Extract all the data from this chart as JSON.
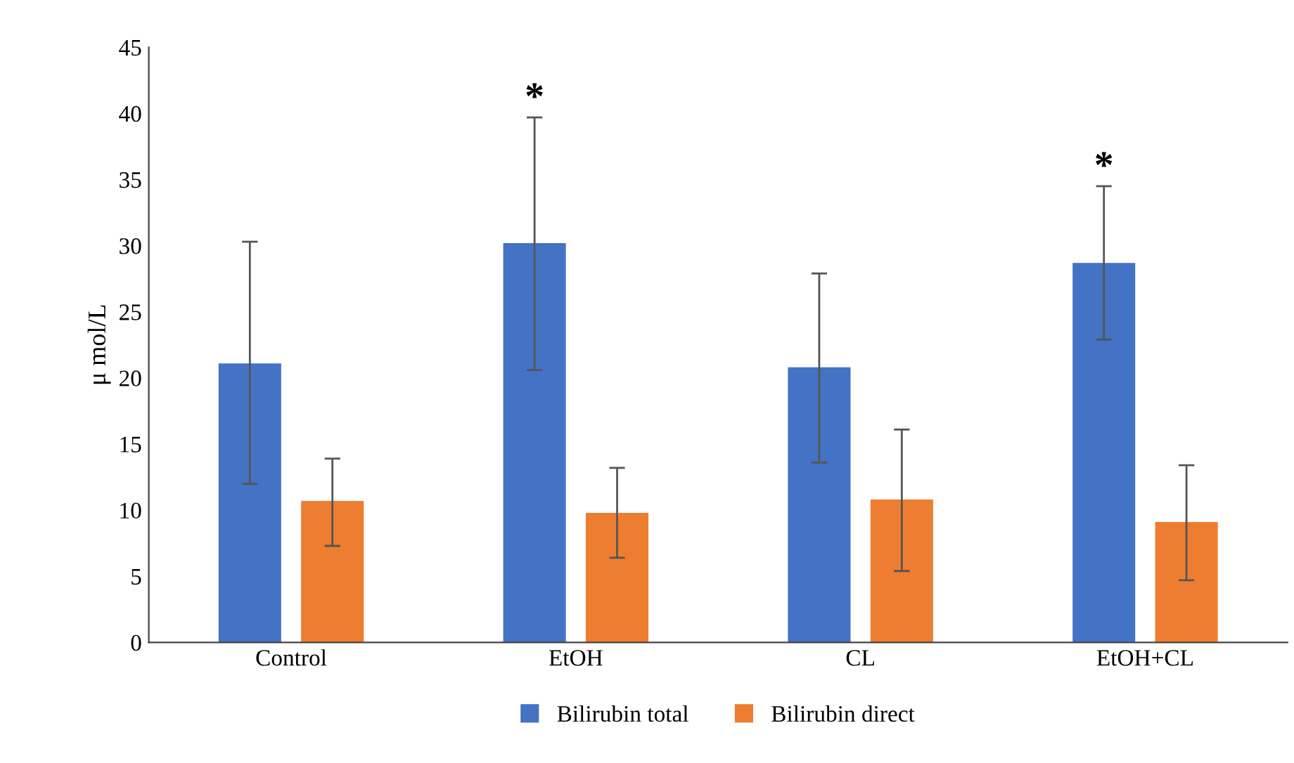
{
  "chart_data": {
    "type": "bar",
    "ylabel": "μ mol/L",
    "categories": [
      "Control",
      "EtOH",
      "CL",
      "EtOH+CL"
    ],
    "series": [
      {
        "name": "Bilirubin total",
        "color": "#4472c4",
        "values": [
          21.1,
          30.2,
          20.8,
          28.7
        ],
        "errors": [
          [
            12.0,
            30.3
          ],
          [
            20.6,
            39.7
          ],
          [
            13.6,
            27.9
          ],
          [
            22.9,
            34.5
          ]
        ]
      },
      {
        "name": "Bilirubin direct",
        "color": "#ed7d31",
        "values": [
          10.7,
          9.8,
          10.8,
          9.1
        ],
        "errors": [
          [
            7.3,
            13.9
          ],
          [
            6.4,
            13.2
          ],
          [
            5.4,
            16.1
          ],
          [
            4.7,
            13.4
          ]
        ]
      }
    ],
    "ylim": [
      0,
      45
    ],
    "yticks": [
      0,
      5,
      10,
      15,
      20,
      25,
      30,
      35,
      40,
      45
    ],
    "grid": false,
    "legend": "bottom",
    "annotations": [
      "*",
      "*"
    ]
  }
}
